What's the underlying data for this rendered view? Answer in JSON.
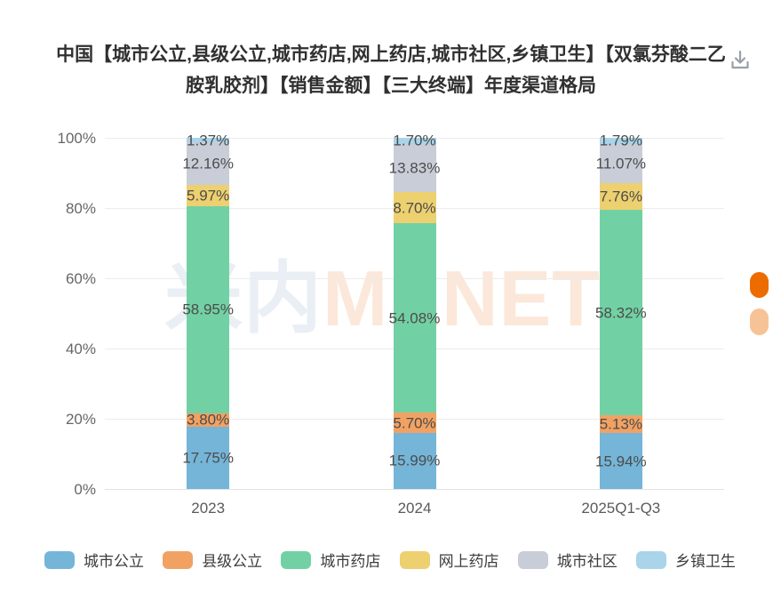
{
  "header": {
    "title": "中国【城市公立,县级公立,城市药店,网上药店,城市社区,乡镇卫生】【双氯芬酸二乙胺乳胶剂】【销售金额】【三大终端】年度渠道格局",
    "download_tooltip": "下载"
  },
  "watermark": {
    "text_cn": "米内",
    "text_en": "MENET",
    "color_cn": "#e9eff4",
    "color_en": "#fbe8da"
  },
  "chart_data": {
    "type": "bar",
    "stacked": true,
    "percent_stack": true,
    "title": "中国【城市公立,县级公立,城市药店,网上药店,城市社区,乡镇卫生】【双氯芬酸二乙胺乳胶剂】【销售金额】【三大终端】年度渠道格局",
    "categories": [
      "2023",
      "2024",
      "2025Q1-Q3"
    ],
    "series": [
      {
        "name": "城市公立",
        "color": "#75b5d8",
        "values": [
          17.75,
          15.99,
          15.94
        ]
      },
      {
        "name": "县级公立",
        "color": "#f1a263",
        "values": [
          3.8,
          5.7,
          5.13
        ]
      },
      {
        "name": "城市药店",
        "color": "#72d1a4",
        "values": [
          58.95,
          54.08,
          58.32
        ]
      },
      {
        "name": "网上药店",
        "color": "#edd06f",
        "values": [
          5.97,
          8.7,
          7.76
        ]
      },
      {
        "name": "城市社区",
        "color": "#c9cdd7",
        "values": [
          12.16,
          13.83,
          11.07
        ]
      },
      {
        "name": "乡镇卫生",
        "color": "#a9d4e9",
        "values": [
          1.37,
          1.7,
          1.79
        ]
      }
    ],
    "value_label_suffix": "%",
    "value_label_decimals": 2,
    "xlabel": "",
    "ylabel": "",
    "y_axis": {
      "min": 0,
      "max": 100,
      "ticks": [
        "0%",
        "20%",
        "40%",
        "60%",
        "80%",
        "100%"
      ],
      "grid": true
    },
    "legend_position": "bottom"
  },
  "scrollbar": {
    "thumb_color": "#ed6c00",
    "track_color": "#f7c396"
  }
}
